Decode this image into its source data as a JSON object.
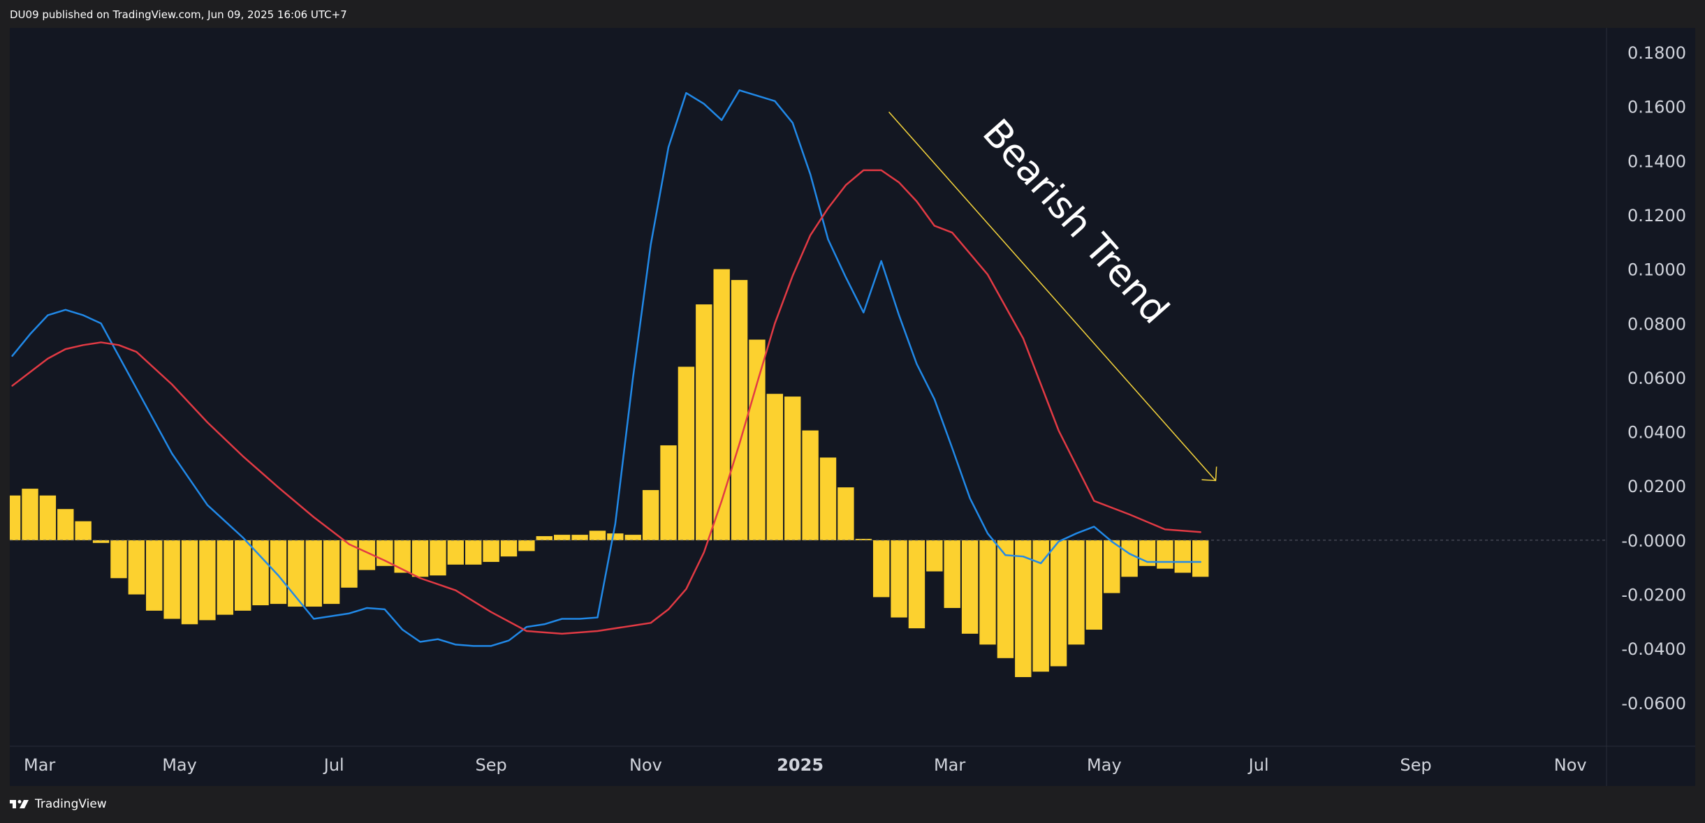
{
  "header": {
    "published_text": "DU09 published on TradingView.com, Jun 09, 2025 16:06 UTC+7"
  },
  "footer": {
    "brand_text": "TradingView",
    "logo_icon": "tradingview-logo-icon"
  },
  "annotation": {
    "text": "Bearish Trend",
    "arrow_color": "#f7d63c",
    "arrow_start": [
      "2025-02-05",
      0.158
    ],
    "arrow_end": [
      "2025-06-14",
      0.022
    ]
  },
  "colors": {
    "histogram": "#fcd12f",
    "macd_line": "#2189e8",
    "signal_line": "#e23a44",
    "background": "#131722",
    "text": "#d1d4dc"
  },
  "chart_data": {
    "type": "bar",
    "title": "",
    "xlabel": "",
    "ylabel": "",
    "ylim": [
      -0.076,
      0.189
    ],
    "xlim": [
      "2024-02-24",
      "2025-11-15"
    ],
    "grid": false,
    "legend": "none",
    "y_ticks": [
      "0.1800",
      "0.1600",
      "0.1400",
      "0.1200",
      "0.1000",
      "0.0800",
      "0.0600",
      "0.0400",
      "0.0200",
      "-0.0000",
      "-0.0200",
      "-0.0400",
      "-0.0600"
    ],
    "y_tick_values": [
      0.18,
      0.16,
      0.14,
      0.12,
      0.1,
      0.08,
      0.06,
      0.04,
      0.02,
      0.0,
      -0.02,
      -0.04,
      -0.06
    ],
    "x_ticks": [
      {
        "label": "Mar",
        "date": "2024-03-01",
        "bold": false
      },
      {
        "label": "May",
        "date": "2024-05-01",
        "bold": false
      },
      {
        "label": "Jul",
        "date": "2024-07-01",
        "bold": false
      },
      {
        "label": "Sep",
        "date": "2024-09-01",
        "bold": false
      },
      {
        "label": "Nov",
        "date": "2024-11-01",
        "bold": false
      },
      {
        "label": "2025",
        "date": "2025-01-01",
        "bold": true
      },
      {
        "label": "Mar",
        "date": "2025-03-01",
        "bold": false
      },
      {
        "label": "May",
        "date": "2025-05-01",
        "bold": false
      },
      {
        "label": "Jul",
        "date": "2025-07-01",
        "bold": false
      },
      {
        "label": "Sep",
        "date": "2025-09-01",
        "bold": false
      },
      {
        "label": "Nov",
        "date": "2025-11-01",
        "bold": false
      }
    ],
    "histogram": {
      "x": [
        "2024-02-25",
        "2024-03-03",
        "2024-03-10",
        "2024-03-17",
        "2024-03-24",
        "2024-03-31",
        "2024-04-07",
        "2024-04-14",
        "2024-04-21",
        "2024-04-28",
        "2024-05-05",
        "2024-05-12",
        "2024-05-19",
        "2024-05-26",
        "2024-06-02",
        "2024-06-09",
        "2024-06-16",
        "2024-06-23",
        "2024-06-30",
        "2024-07-07",
        "2024-07-14",
        "2024-07-21",
        "2024-07-28",
        "2024-08-04",
        "2024-08-11",
        "2024-08-18",
        "2024-08-25",
        "2024-09-01",
        "2024-09-08",
        "2024-09-15",
        "2024-09-22",
        "2024-09-29",
        "2024-10-06",
        "2024-10-13",
        "2024-10-20",
        "2024-10-27",
        "2024-11-03",
        "2024-11-10",
        "2024-11-17",
        "2024-11-24",
        "2024-12-01",
        "2024-12-08",
        "2024-12-15",
        "2024-12-22",
        "2024-12-29",
        "2025-01-05",
        "2025-01-12",
        "2025-01-19",
        "2025-01-26",
        "2025-02-02",
        "2025-02-09",
        "2025-02-16",
        "2025-02-23",
        "2025-03-02",
        "2025-03-09",
        "2025-03-16",
        "2025-03-23",
        "2025-03-30",
        "2025-04-06",
        "2025-04-13",
        "2025-04-20",
        "2025-04-27",
        "2025-05-04",
        "2025-05-11",
        "2025-05-18",
        "2025-05-25",
        "2025-06-01",
        "2025-06-08"
      ],
      "values": [
        0.0165,
        0.019,
        0.0165,
        0.0115,
        0.007,
        -0.001,
        -0.014,
        -0.02,
        -0.026,
        -0.029,
        -0.031,
        -0.0295,
        -0.0275,
        -0.026,
        -0.024,
        -0.0235,
        -0.0245,
        -0.0245,
        -0.0235,
        -0.0175,
        -0.011,
        -0.0095,
        -0.012,
        -0.0135,
        -0.013,
        -0.009,
        -0.009,
        -0.008,
        -0.006,
        -0.004,
        0.0015,
        0.002,
        0.002,
        0.0035,
        0.0025,
        0.002,
        0.0185,
        0.035,
        0.064,
        0.087,
        0.1,
        0.096,
        0.074,
        0.054,
        0.053,
        0.0405,
        0.0305,
        0.0195,
        0.0005,
        -0.021,
        -0.0285,
        -0.0325,
        -0.0115,
        -0.025,
        -0.0345,
        -0.0385,
        -0.0435,
        -0.0505,
        -0.0485,
        -0.0465,
        -0.0385,
        -0.033,
        -0.0195,
        -0.0135,
        -0.0095,
        -0.0105,
        -0.012,
        -0.0135
      ]
    },
    "series": [
      {
        "name": "",
        "color": "#2189e8",
        "x": [
          "2024-02-25",
          "2024-03-03",
          "2024-03-10",
          "2024-03-17",
          "2024-03-24",
          "2024-03-31",
          "2024-04-14",
          "2024-04-28",
          "2024-05-12",
          "2024-05-26",
          "2024-06-09",
          "2024-06-23",
          "2024-07-07",
          "2024-07-14",
          "2024-07-21",
          "2024-07-28",
          "2024-08-04",
          "2024-08-11",
          "2024-08-18",
          "2024-08-25",
          "2024-09-01",
          "2024-09-08",
          "2024-09-15",
          "2024-09-22",
          "2024-09-29",
          "2024-10-06",
          "2024-10-13",
          "2024-10-20",
          "2024-10-27",
          "2024-11-03",
          "2024-11-10",
          "2024-11-17",
          "2024-11-24",
          "2024-12-01",
          "2024-12-08",
          "2024-12-15",
          "2024-12-22",
          "2024-12-29",
          "2025-01-05",
          "2025-01-12",
          "2025-01-19",
          "2025-01-26",
          "2025-02-02",
          "2025-02-09",
          "2025-02-16",
          "2025-02-23",
          "2025-03-02",
          "2025-03-09",
          "2025-03-16",
          "2025-03-23",
          "2025-03-30",
          "2025-04-06",
          "2025-04-13",
          "2025-04-20",
          "2025-04-27",
          "2025-05-04",
          "2025-05-11",
          "2025-05-18",
          "2025-05-25",
          "2025-06-01",
          "2025-06-08"
        ],
        "values": [
          0.068,
          0.076,
          0.083,
          0.085,
          0.083,
          0.08,
          0.056,
          0.032,
          0.013,
          0.001,
          -0.013,
          -0.029,
          -0.027,
          -0.025,
          -0.0255,
          -0.033,
          -0.0375,
          -0.0365,
          -0.0385,
          -0.039,
          -0.039,
          -0.037,
          -0.032,
          -0.031,
          -0.029,
          -0.029,
          -0.0285,
          0.006,
          0.06,
          0.109,
          0.145,
          0.165,
          0.161,
          0.155,
          0.166,
          0.164,
          0.162,
          0.154,
          0.135,
          0.111,
          0.097,
          0.084,
          0.103,
          0.083,
          0.065,
          0.052,
          0.034,
          0.0155,
          0.0025,
          -0.0055,
          -0.006,
          -0.0085,
          -0.0005,
          0.0025,
          0.005,
          -0.0005,
          -0.005,
          -0.008,
          -0.008,
          -0.008,
          -0.008
        ]
      },
      {
        "name": "",
        "color": "#e23a44",
        "x": [
          "2024-02-25",
          "2024-03-03",
          "2024-03-10",
          "2024-03-17",
          "2024-03-24",
          "2024-03-31",
          "2024-04-07",
          "2024-04-14",
          "2024-04-28",
          "2024-05-12",
          "2024-05-26",
          "2024-06-09",
          "2024-06-23",
          "2024-07-07",
          "2024-07-21",
          "2024-08-04",
          "2024-08-18",
          "2024-09-01",
          "2024-09-15",
          "2024-09-29",
          "2024-10-13",
          "2024-10-27",
          "2024-11-03",
          "2024-11-10",
          "2024-11-17",
          "2024-11-24",
          "2024-12-01",
          "2024-12-08",
          "2024-12-15",
          "2024-12-22",
          "2024-12-29",
          "2025-01-05",
          "2025-01-12",
          "2025-01-19",
          "2025-01-26",
          "2025-02-02",
          "2025-02-09",
          "2025-02-16",
          "2025-02-23",
          "2025-03-02",
          "2025-03-16",
          "2025-03-30",
          "2025-04-13",
          "2025-04-27",
          "2025-05-11",
          "2025-05-25",
          "2025-06-08"
        ],
        "values": [
          0.057,
          0.062,
          0.067,
          0.0705,
          0.072,
          0.073,
          0.072,
          0.0695,
          0.0575,
          0.0435,
          0.031,
          0.0195,
          0.0085,
          -0.0015,
          -0.0075,
          -0.014,
          -0.0185,
          -0.0265,
          -0.0335,
          -0.0345,
          -0.0335,
          -0.0315,
          -0.0305,
          -0.0255,
          -0.018,
          -0.0045,
          0.0145,
          0.0355,
          0.058,
          0.08,
          0.0975,
          0.1125,
          0.1225,
          0.131,
          0.1365,
          0.1365,
          0.132,
          0.125,
          0.116,
          0.1135,
          0.098,
          0.0745,
          0.0405,
          0.0145,
          0.0095,
          0.004,
          0.003
        ]
      }
    ]
  }
}
